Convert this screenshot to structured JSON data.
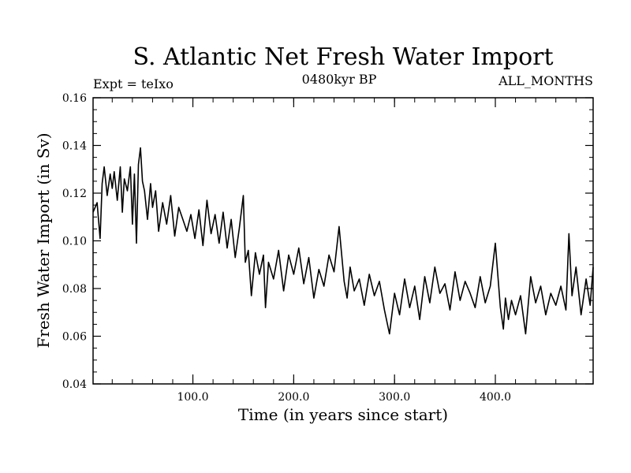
{
  "chart_data": {
    "type": "line",
    "title": "S. Atlantic Net Fresh Water Import",
    "experiment_label": "Expt = teIxo",
    "period_label": "0480kyr BP",
    "months_label": "ALL_MONTHS",
    "xlabel": "Time (in years since start)",
    "ylabel": "Fresh Water Import (in Sv)",
    "xlim": [
      1,
      497
    ],
    "ylim": [
      0.04,
      0.16
    ],
    "x_ticks": [
      100.0,
      200.0,
      300.0,
      400.0
    ],
    "x_tick_labels": [
      "100.0",
      "200.0",
      "300.0",
      "400.0"
    ],
    "y_ticks": [
      0.04,
      0.06,
      0.08,
      0.1,
      0.12,
      0.14,
      0.16
    ],
    "y_tick_labels": [
      "0.04",
      "0.06",
      "0.08",
      "0.10",
      "0.12",
      "0.14",
      "0.16"
    ],
    "series": [
      {
        "name": "Net Fresh Water Import",
        "color": "#000000",
        "x": [
          1,
          5,
          8,
          10,
          12,
          15,
          18,
          20,
          22,
          25,
          28,
          30,
          32,
          35,
          38,
          40,
          42,
          44,
          46,
          48,
          50,
          52,
          55,
          58,
          60,
          63,
          66,
          70,
          74,
          78,
          82,
          86,
          90,
          94,
          98,
          102,
          106,
          110,
          114,
          118,
          122,
          126,
          130,
          134,
          138,
          142,
          146,
          150,
          152,
          155,
          158,
          162,
          166,
          170,
          172,
          175,
          180,
          185,
          190,
          195,
          200,
          205,
          210,
          215,
          220,
          225,
          230,
          235,
          240,
          245,
          250,
          253,
          256,
          260,
          265,
          270,
          275,
          280,
          285,
          290,
          295,
          300,
          305,
          310,
          315,
          320,
          325,
          330,
          335,
          340,
          345,
          350,
          355,
          360,
          365,
          370,
          375,
          380,
          385,
          390,
          395,
          400,
          405,
          408,
          410,
          413,
          416,
          420,
          425,
          430,
          435,
          440,
          445,
          450,
          455,
          460,
          465,
          470,
          473,
          476,
          480,
          485,
          490,
          494,
          497
        ],
        "values": [
          0.112,
          0.116,
          0.101,
          0.124,
          0.131,
          0.119,
          0.128,
          0.122,
          0.129,
          0.117,
          0.131,
          0.112,
          0.126,
          0.121,
          0.131,
          0.107,
          0.128,
          0.099,
          0.132,
          0.139,
          0.125,
          0.121,
          0.109,
          0.124,
          0.114,
          0.121,
          0.104,
          0.116,
          0.107,
          0.119,
          0.102,
          0.114,
          0.109,
          0.104,
          0.111,
          0.101,
          0.113,
          0.098,
          0.117,
          0.103,
          0.111,
          0.099,
          0.112,
          0.097,
          0.109,
          0.093,
          0.105,
          0.119,
          0.091,
          0.096,
          0.077,
          0.095,
          0.086,
          0.094,
          0.072,
          0.091,
          0.084,
          0.096,
          0.079,
          0.094,
          0.086,
          0.097,
          0.082,
          0.093,
          0.076,
          0.088,
          0.081,
          0.094,
          0.087,
          0.106,
          0.083,
          0.076,
          0.089,
          0.079,
          0.084,
          0.073,
          0.086,
          0.077,
          0.083,
          0.071,
          0.061,
          0.078,
          0.069,
          0.084,
          0.072,
          0.081,
          0.067,
          0.085,
          0.074,
          0.089,
          0.078,
          0.082,
          0.071,
          0.087,
          0.075,
          0.083,
          0.078,
          0.072,
          0.085,
          0.074,
          0.081,
          0.099,
          0.072,
          0.063,
          0.076,
          0.067,
          0.075,
          0.069,
          0.077,
          0.061,
          0.085,
          0.074,
          0.081,
          0.069,
          0.078,
          0.073,
          0.081,
          0.071,
          0.103,
          0.077,
          0.089,
          0.069,
          0.084,
          0.073,
          0.089
        ]
      }
    ]
  }
}
